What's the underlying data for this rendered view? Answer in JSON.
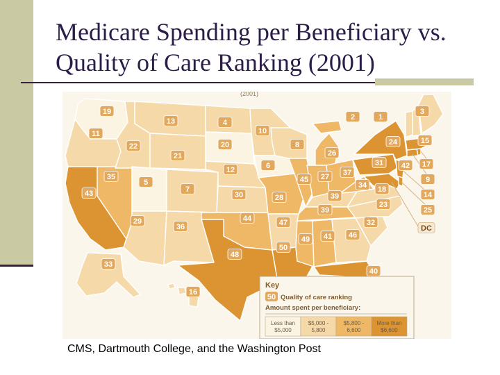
{
  "slide": {
    "title": "Medicare Spending per Beneficiary vs. Quality of Care Ranking (2001)",
    "source": "CMS, Dartmouth College, and the Washington Post",
    "map_header_fragment": "(2001)"
  },
  "legend": {
    "title": "Key",
    "badge_example": "50",
    "quality_label": "Quality of care ranking",
    "spending_label": "Amount spent per beneficiary:",
    "bins": [
      {
        "label": "Less than $5,000",
        "color": "#fbf4e3"
      },
      {
        "label": "$5,000 - 5,800",
        "color": "#f6d9a9"
      },
      {
        "label": "$5,800 - 6,600",
        "color": "#efb867"
      },
      {
        "label": "More than $6,600",
        "color": "#dc9433"
      }
    ]
  },
  "colors": {
    "sidebar": "#c9c9a3",
    "title_text": "#2b1d49",
    "rule": "#3b1f3f",
    "badge": "#e2a85e",
    "state_border": "#ffffff"
  },
  "states": [
    {
      "id": "wa",
      "name": "Washington",
      "rank": "11",
      "tier": 0
    },
    {
      "id": "or",
      "name": "Oregon",
      "rank": "22",
      "tier": 1
    },
    {
      "id": "ca",
      "name": "California",
      "rank": "43",
      "tier": 3
    },
    {
      "id": "nv",
      "name": "Nevada",
      "rank": "35",
      "tier": 2
    },
    {
      "id": "id",
      "name": "Idaho",
      "rank": "21",
      "tier": 1
    },
    {
      "id": "mt",
      "name": "Montana",
      "rank": "19",
      "tier": 1
    },
    {
      "id": "wy",
      "name": "Wyoming",
      "rank": "13",
      "tier": 1
    },
    {
      "id": "ut",
      "name": "Utah",
      "rank": "5",
      "tier": 0
    },
    {
      "id": "az",
      "name": "Arizona",
      "rank": "29",
      "tier": 1
    },
    {
      "id": "co",
      "name": "Colorado",
      "rank": "7",
      "tier": 1
    },
    {
      "id": "nm",
      "name": "New Mexico",
      "rank": "36",
      "tier": 1
    },
    {
      "id": "nd",
      "name": "North Dakota",
      "rank": "4",
      "tier": 1
    },
    {
      "id": "sd",
      "name": "South Dakota",
      "rank": "20",
      "tier": 0
    },
    {
      "id": "ne",
      "name": "Nebraska",
      "rank": "12",
      "tier": 1
    },
    {
      "id": "ks",
      "name": "Kansas",
      "rank": "30",
      "tier": 1
    },
    {
      "id": "ok",
      "name": "Oklahoma",
      "rank": "44",
      "tier": 2
    },
    {
      "id": "tx",
      "name": "Texas",
      "rank": "48",
      "tier": 3
    },
    {
      "id": "mn",
      "name": "Minnesota",
      "rank": "10",
      "tier": 1
    },
    {
      "id": "ia",
      "name": "Iowa",
      "rank": "6",
      "tier": 0
    },
    {
      "id": "mo",
      "name": "Missouri",
      "rank": "28",
      "tier": 2
    },
    {
      "id": "ar",
      "name": "Arkansas",
      "rank": "47",
      "tier": 1
    },
    {
      "id": "la",
      "name": "Louisiana",
      "rank": "50",
      "tier": 3
    },
    {
      "id": "wi",
      "name": "Wisconsin",
      "rank": "8",
      "tier": 1
    },
    {
      "id": "il",
      "name": "Illinois",
      "rank": "45",
      "tier": 2
    },
    {
      "id": "mi",
      "name": "Michigan",
      "rank": "26",
      "tier": 2
    },
    {
      "id": "in",
      "name": "Indiana",
      "rank": "27",
      "tier": 2
    },
    {
      "id": "oh",
      "name": "Ohio",
      "rank": "37",
      "tier": 2
    },
    {
      "id": "ky",
      "name": "Kentucky",
      "rank": "39",
      "tier": 1
    },
    {
      "id": "tn",
      "name": "Tennessee",
      "rank": "39",
      "tier": 2
    },
    {
      "id": "ms",
      "name": "Mississippi",
      "rank": "49",
      "tier": 2
    },
    {
      "id": "al",
      "name": "Alabama",
      "rank": "41",
      "tier": 2
    },
    {
      "id": "ga",
      "name": "Georgia",
      "rank": "46",
      "tier": 1
    },
    {
      "id": "fl",
      "name": "Florida",
      "rank": "40",
      "tier": 3
    },
    {
      "id": "sc",
      "name": "South Carolina",
      "rank": "32",
      "tier": 1
    },
    {
      "id": "nc",
      "name": "North Carolina",
      "rank": "23",
      "tier": 1
    },
    {
      "id": "va",
      "name": "Virginia",
      "rank": "18",
      "tier": 1
    },
    {
      "id": "wv",
      "name": "West Virginia",
      "rank": "34",
      "tier": 2
    },
    {
      "id": "pa",
      "name": "Pennsylvania",
      "rank": "31",
      "tier": 3
    },
    {
      "id": "ny",
      "name": "New York",
      "rank": "24",
      "tier": 3
    },
    {
      "id": "vt",
      "name": "Vermont",
      "rank": "2",
      "tier": 1
    },
    {
      "id": "nh",
      "name": "New Hampshire",
      "rank": "1",
      "tier": 1
    },
    {
      "id": "me",
      "name": "Maine",
      "rank": "3",
      "tier": 1
    },
    {
      "id": "ma",
      "name": "Massachusetts",
      "rank": "15",
      "tier": 3
    },
    {
      "id": "ri",
      "name": "Rhode Island",
      "rank": "17",
      "tier": 3
    },
    {
      "id": "ct",
      "name": "Connecticut",
      "rank": "9",
      "tier": 3
    },
    {
      "id": "nj",
      "name": "New Jersey",
      "rank": "14",
      "tier": 3
    },
    {
      "id": "de",
      "name": "Delaware",
      "rank": "25",
      "tier": 3
    },
    {
      "id": "md",
      "name": "Maryland",
      "rank": "42",
      "tier": 3
    },
    {
      "id": "dc",
      "name": "District of Columbia",
      "rank": "DC",
      "tier": 3
    },
    {
      "id": "ak",
      "name": "Alaska",
      "rank": "33",
      "tier": 1
    },
    {
      "id": "hi",
      "name": "Hawaii",
      "rank": "16",
      "tier": 1
    }
  ]
}
